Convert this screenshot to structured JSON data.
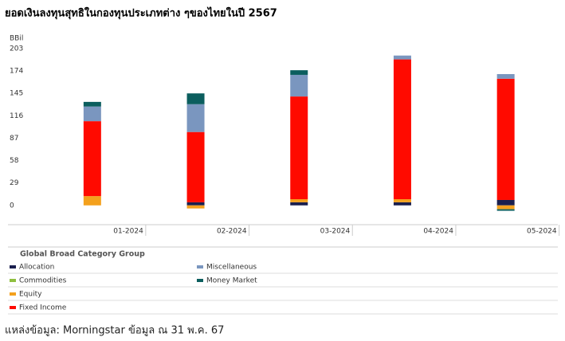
{
  "chart_data": {
    "type": "bar",
    "stacked": true,
    "title": "ยอดเงินลงทุนสุทธิในกองทุนประเภทต่าง ๆของไทยในปี 2567",
    "y_label": "BBil",
    "legend_title": "Global Broad Category Group",
    "source": "แหล่งข้อมูล: Morningstar ข้อมูล ณ 31 พ.ค. 67",
    "categories": [
      "01-2024",
      "02-2024",
      "03-2024",
      "04-2024",
      "05-2024"
    ],
    "series": [
      {
        "name": "Allocation",
        "color": "#1a1f4e",
        "values": [
          0,
          4,
          4,
          4,
          7
        ]
      },
      {
        "name": "Commodities",
        "color": "#8fbf3f",
        "values": [
          0,
          0,
          0,
          0,
          0
        ]
      },
      {
        "name": "Equity",
        "color": "#f4a11d",
        "values": [
          12,
          -4,
          4,
          4,
          -5
        ]
      },
      {
        "name": "Fixed Income",
        "color": "#ff0a00",
        "values": [
          97,
          91,
          133,
          181,
          157
        ]
      },
      {
        "name": "Miscellaneous",
        "color": "#7a96bf",
        "values": [
          19,
          36,
          28,
          5,
          6
        ]
      },
      {
        "name": "Money Market",
        "color": "#0b5e5e",
        "values": [
          6,
          14,
          6,
          0,
          -2
        ]
      }
    ],
    "ylim": [
      -25,
      203
    ],
    "yticks": [
      0,
      29,
      58,
      87,
      116,
      145,
      174,
      203
    ]
  }
}
